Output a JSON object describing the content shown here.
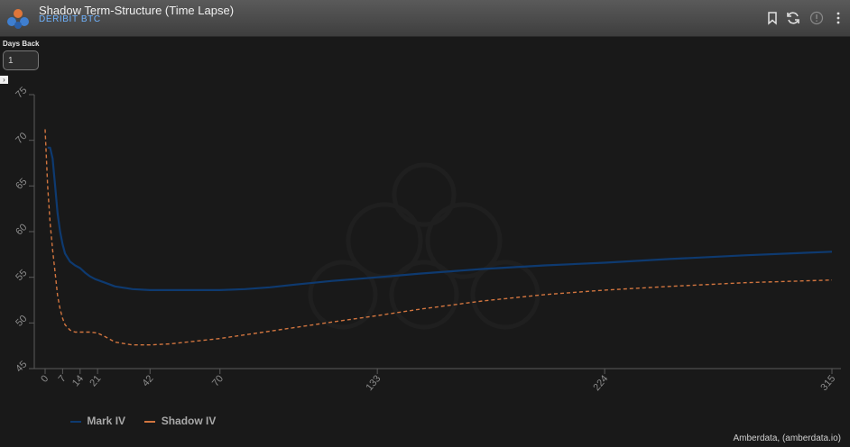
{
  "header": {
    "title": "Shadow Term-Structure (Time Lapse)",
    "subtitle": "DERIBIT BTC"
  },
  "controls": {
    "days_back_label": "Days Back",
    "days_back_value": "1"
  },
  "colors": {
    "mark_iv": "#0e3a70",
    "shadow_iv": "#d2753f",
    "background": "#191919"
  },
  "icons": [
    "app-logo-icon",
    "bookmark-icon",
    "refresh-icon",
    "info-icon",
    "more-vert-icon"
  ],
  "chart_data": {
    "type": "line",
    "title": "",
    "xlabel": "",
    "ylabel": "",
    "xlim": [
      0,
      315
    ],
    "ylim": [
      45,
      75
    ],
    "x_ticks": [
      0,
      7,
      14,
      21,
      42,
      70,
      133,
      224,
      315
    ],
    "y_ticks": [
      45,
      50,
      55,
      60,
      65,
      70,
      75
    ],
    "grid": false,
    "legend_position": "bottom-left",
    "series": [
      {
        "name": "Mark IV",
        "style": "solid",
        "x": [
          1,
          2,
          3,
          4,
          5,
          6,
          7,
          8,
          10,
          12,
          14,
          16,
          18,
          20,
          24,
          28,
          35,
          42,
          50,
          60,
          70,
          80,
          90,
          100,
          115,
          133,
          150,
          175,
          200,
          224,
          250,
          280,
          315
        ],
        "y": [
          69.2,
          69.2,
          68.0,
          65.0,
          62.0,
          60.0,
          58.6,
          57.6,
          56.7,
          56.3,
          56.0,
          55.5,
          55.1,
          54.8,
          54.4,
          54.0,
          53.7,
          53.6,
          53.6,
          53.6,
          53.6,
          53.7,
          53.9,
          54.2,
          54.6,
          55.0,
          55.4,
          55.9,
          56.3,
          56.6,
          57.0,
          57.4,
          57.8
        ]
      },
      {
        "name": "Shadow IV",
        "style": "dashed",
        "x": [
          0,
          1,
          2,
          3,
          4,
          5,
          6,
          7,
          8,
          10,
          12,
          14,
          18,
          21,
          24,
          28,
          35,
          42,
          50,
          60,
          70,
          80,
          90,
          100,
          115,
          133,
          150,
          175,
          200,
          224,
          250,
          280,
          315
        ],
        "y": [
          71.2,
          65.0,
          61.0,
          58.0,
          55.5,
          53.0,
          51.5,
          50.5,
          49.8,
          49.2,
          49.0,
          49.0,
          49.0,
          48.9,
          48.5,
          47.9,
          47.6,
          47.6,
          47.7,
          48.0,
          48.3,
          48.7,
          49.1,
          49.5,
          50.1,
          50.8,
          51.5,
          52.4,
          53.1,
          53.6,
          54.0,
          54.4,
          54.7
        ]
      }
    ]
  },
  "credits": "Amberdata, (amberdata.io)"
}
